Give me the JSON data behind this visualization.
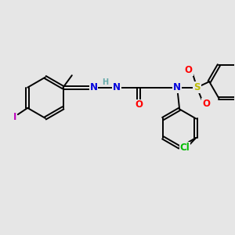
{
  "bg_color": "#e6e6e6",
  "bond_color": "#000000",
  "atom_colors": {
    "N": "#0000dd",
    "H": "#66aaaa",
    "O": "#ff0000",
    "S": "#bbbb00",
    "Cl": "#00bb00",
    "I": "#bb00bb",
    "C": "#000000"
  },
  "bond_width": 1.4,
  "font_size_atom": 8.5,
  "font_size_h": 7.0
}
